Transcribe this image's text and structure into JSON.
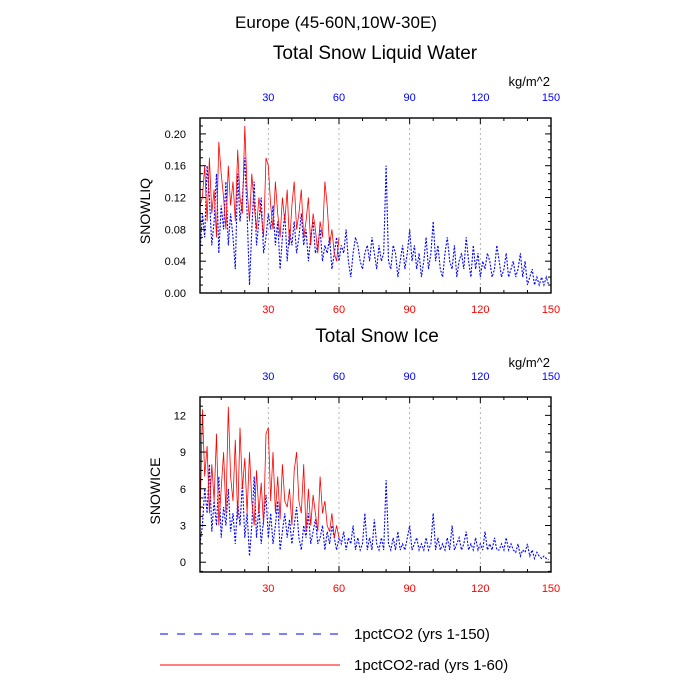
{
  "title_region": "Europe (45-60N,10W-30E)",
  "colors": {
    "series_blue": "#0000ff",
    "series_red": "#ff0000",
    "axis_red": "#ff0000",
    "axis_blue": "#0000ff"
  },
  "chart_data": [
    {
      "type": "line",
      "title": "Total Snow Liquid Water",
      "units": "kg/m^2",
      "ylabel": "SNOWLIQ",
      "xlim": [
        1,
        150
      ],
      "ylim": [
        0,
        0.22
      ],
      "x_ticks_bottom": [
        "30",
        "60",
        "90",
        "120",
        "150"
      ],
      "x_ticks_top": [
        "30",
        "60",
        "90",
        "120",
        "150"
      ],
      "y_ticks": [
        "0.00",
        "0.04",
        "0.08",
        "0.12",
        "0.16",
        "0.20"
      ],
      "y_tick_values": [
        0,
        0.04,
        0.08,
        0.12,
        0.16,
        0.2
      ],
      "vertical_gridlines_at": [
        30,
        60,
        90,
        120
      ],
      "series": [
        {
          "name": "1pctCO2 (yrs 1-150)",
          "style": "dashed",
          "color": "#0000ff",
          "values": [
            0.05,
            0.1,
            0.07,
            0.16,
            0.12,
            0.06,
            0.09,
            0.15,
            0.05,
            0.11,
            0.08,
            0.14,
            0.06,
            0.1,
            0.07,
            0.03,
            0.15,
            0.09,
            0.12,
            0.17,
            0.1,
            0.01,
            0.08,
            0.14,
            0.06,
            0.09,
            0.12,
            0.05,
            0.07,
            0.1,
            0.08,
            0.11,
            0.06,
            0.09,
            0.03,
            0.07,
            0.1,
            0.04,
            0.08,
            0.06,
            0.09,
            0.05,
            0.07,
            0.1,
            0.06,
            0.08,
            0.04,
            0.07,
            0.09,
            0.05,
            0.06,
            0.08,
            0.04,
            0.06,
            0.05,
            0.07,
            0.03,
            0.05,
            0.07,
            0.04,
            0.06,
            0.05,
            0.08,
            0.04,
            0.02,
            0.05,
            0.07,
            0.06,
            0.04,
            0.03,
            0.05,
            0.06,
            0.04,
            0.07,
            0.05,
            0.03,
            0.06,
            0.04,
            0.05,
            0.16,
            0.04,
            0.03,
            0.06,
            0.05,
            0.02,
            0.04,
            0.06,
            0.03,
            0.05,
            0.08,
            0.04,
            0.06,
            0.03,
            0.05,
            0.02,
            0.04,
            0.07,
            0.03,
            0.05,
            0.09,
            0.04,
            0.06,
            0.03,
            0.02,
            0.05,
            0.07,
            0.04,
            0.03,
            0.06,
            0.02,
            0.04,
            0.05,
            0.03,
            0.07,
            0.04,
            0.02,
            0.06,
            0.03,
            0.05,
            0.02,
            0.04,
            0.03,
            0.05,
            0.04,
            0.02,
            0.03,
            0.06,
            0.04,
            0.02,
            0.03,
            0.05,
            0.02,
            0.03,
            0.04,
            0.02,
            0.03,
            0.05,
            0.02,
            0.04,
            0.01,
            0.02,
            0.03,
            0.01,
            0.02,
            0.01,
            0.02,
            0.01,
            0.02,
            0.01,
            0.01
          ]
        },
        {
          "name": "1pctCO2-rad (yrs 1-60)",
          "style": "solid",
          "color": "#ff0000",
          "values": [
            0.11,
            0.12,
            0.16,
            0.09,
            0.17,
            0.1,
            0.13,
            0.07,
            0.19,
            0.15,
            0.12,
            0.08,
            0.16,
            0.11,
            0.14,
            0.09,
            0.18,
            0.12,
            0.1,
            0.21,
            0.13,
            0.09,
            0.15,
            0.11,
            0.08,
            0.12,
            0.1,
            0.07,
            0.17,
            0.16,
            0.11,
            0.08,
            0.14,
            0.1,
            0.07,
            0.12,
            0.09,
            0.13,
            0.06,
            0.11,
            0.14,
            0.08,
            0.1,
            0.13,
            0.07,
            0.09,
            0.12,
            0.06,
            0.1,
            0.08,
            0.05,
            0.09,
            0.07,
            0.14,
            0.11,
            0.06,
            0.08,
            0.05,
            0.04,
            0.07
          ]
        }
      ]
    },
    {
      "type": "line",
      "title": "Total Snow Ice",
      "units": "kg/m^2",
      "ylabel": "SNOWICE",
      "xlim": [
        1,
        150
      ],
      "ylim": [
        -0.8,
        13.5
      ],
      "x_ticks_bottom": [
        "30",
        "60",
        "90",
        "120",
        "150"
      ],
      "x_ticks_top": [
        "30",
        "60",
        "90",
        "120",
        "150"
      ],
      "y_ticks": [
        "0",
        "3",
        "6",
        "9",
        "12"
      ],
      "y_tick_values": [
        0,
        3,
        6,
        9,
        12
      ],
      "vertical_gridlines_at": [
        30,
        60,
        90,
        120
      ],
      "series": [
        {
          "name": "1pctCO2 (yrs 1-150)",
          "style": "dashed",
          "color": "#0000ff",
          "values": [
            1.5,
            3,
            6,
            4,
            8,
            2.5,
            5,
            3,
            7,
            2,
            4.5,
            3,
            6,
            2.5,
            4,
            1.5,
            5,
            3,
            6.5,
            2,
            4,
            0.5,
            3,
            7,
            2,
            4.5,
            1.5,
            3.5,
            5.5,
            2,
            4,
            1.5,
            3,
            5,
            1,
            2.5,
            4,
            2,
            3.5,
            1.5,
            3,
            4.5,
            2,
            1,
            3,
            2,
            4,
            1.5,
            2.5,
            3.5,
            1.5,
            2,
            3,
            1,
            2.5,
            1.5,
            3,
            2,
            1,
            2,
            1.5,
            2.5,
            1,
            2,
            1.5,
            3,
            1,
            2,
            1,
            1.5,
            4,
            1,
            2,
            1,
            3.5,
            1.5,
            1,
            2,
            1,
            6.7,
            1.5,
            1,
            2,
            1,
            2.5,
            1,
            1.5,
            1,
            2,
            3,
            1,
            1.5,
            2,
            1,
            1.5,
            1,
            2,
            1,
            1.5,
            4,
            1,
            2,
            1,
            1.5,
            1,
            2,
            1,
            3,
            1,
            1.5,
            2,
            1,
            1.5,
            2.5,
            1,
            1.5,
            1,
            2,
            1,
            1.5,
            1,
            2.5,
            1,
            1.5,
            1,
            2,
            1,
            1,
            1.5,
            1,
            2,
            1,
            1.5,
            1,
            0.8,
            1.5,
            0.5,
            1,
            0.8,
            1.5,
            0.5,
            1,
            0.3,
            0.8,
            0.5,
            0.3,
            0.5,
            0.3,
            0.2
          ]
        },
        {
          "name": "1pctCO2-rad (yrs 1-60)",
          "style": "solid",
          "color": "#ff0000",
          "values": [
            3,
            12.5,
            7,
            9.5,
            4,
            8,
            5,
            10.5,
            3,
            6,
            9,
            4,
            12.7,
            7,
            5,
            10,
            3.5,
            11,
            6,
            8.5,
            4,
            9,
            5,
            3,
            7.5,
            4,
            6.5,
            3,
            10.5,
            11,
            5,
            9,
            4,
            7,
            3.5,
            8,
            5,
            4.5,
            6,
            3,
            7.5,
            9,
            5,
            4,
            8,
            2.5,
            6,
            3,
            5.5,
            4,
            2.5,
            7,
            4,
            5,
            3,
            2.5,
            4,
            2,
            3,
            2
          ]
        }
      ]
    }
  ],
  "legend": [
    {
      "label": "1pctCO2 (yrs 1-150)",
      "style": "dashed",
      "color": "#0000ff"
    },
    {
      "label": "1pctCO2-rad (yrs 1-60)",
      "style": "solid",
      "color": "#ff0000"
    }
  ]
}
